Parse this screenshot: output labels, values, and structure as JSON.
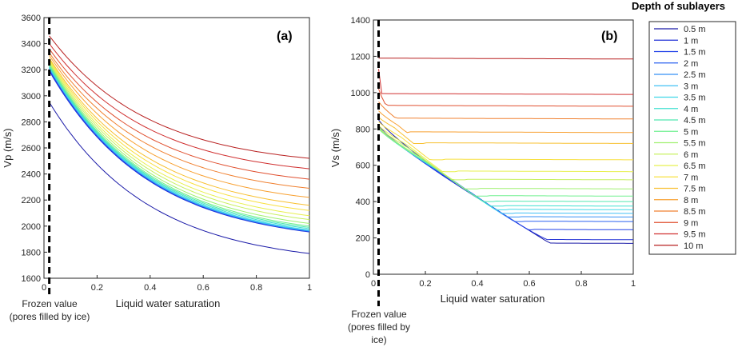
{
  "legend": {
    "title": "Depth of sublayers",
    "entries": [
      "0.5 m",
      "1 m",
      "1.5 m",
      "2 m",
      "2.5 m",
      "3 m",
      "3.5 m",
      "4 m",
      "4.5 m",
      "5 m",
      "5.5 m",
      "6 m",
      "6.5 m",
      "7 m",
      "7.5 m",
      "8 m",
      "8.5 m",
      "9 m",
      "9.5 m",
      "10 m"
    ],
    "colors": [
      "#1a1aa8",
      "#1f2fd6",
      "#2040e8",
      "#2a60f0",
      "#3590f5",
      "#40c0f5",
      "#40d8e8",
      "#40e0d0",
      "#50e8b0",
      "#70f090",
      "#a0f070",
      "#c8f060",
      "#e8f050",
      "#f8e040",
      "#f8c030",
      "#f8a030",
      "#f08030",
      "#e05030",
      "#d03030",
      "#b82020"
    ]
  },
  "chart_data": [
    {
      "type": "line",
      "panel_label": "(a)",
      "xlabel": "Liquid water saturation",
      "ylabel": "Vp (m/s)",
      "xlim": [
        0,
        1
      ],
      "ylim": [
        1600,
        3600
      ],
      "xticks": [
        "0",
        "0.2",
        "0.4",
        "0.6",
        "0.8",
        "1"
      ],
      "yticks": [
        "1600",
        "1800",
        "2000",
        "2200",
        "2400",
        "2600",
        "2800",
        "3000",
        "3200",
        "3400",
        "3600"
      ],
      "frozen_marker_x": 0.02,
      "annotation": [
        "Frozen value",
        "(pores filled by ice)"
      ],
      "x": [
        0.02,
        0.05,
        0.1,
        0.15,
        0.2,
        0.3,
        0.4,
        0.5,
        0.6,
        0.7,
        0.8,
        0.9,
        1.0
      ],
      "series_ends": {
        "description": "Vp at x=0.02 and x=1 for each sublayer, shallow to deep",
        "start": [
          2950,
          3190,
          3200,
          3210,
          3210,
          3215,
          3220,
          3225,
          3230,
          3240,
          3250,
          3260,
          3270,
          3280,
          3290,
          3310,
          3330,
          3360,
          3400,
          3460
        ],
        "end": [
          1790,
          1955,
          1958,
          1960,
          1962,
          1965,
          1970,
          1980,
          1990,
          2000,
          2020,
          2050,
          2080,
          2120,
          2160,
          2220,
          2290,
          2360,
          2440,
          2520
        ]
      }
    },
    {
      "type": "line",
      "panel_label": "(b)",
      "xlabel": "Liquid water saturation",
      "ylabel": "Vs (m/s)",
      "xlim": [
        0,
        1
      ],
      "ylim": [
        0,
        1400
      ],
      "xticks": [
        "0",
        "0.2",
        "0.4",
        "0.6",
        "0.8",
        "1"
      ],
      "yticks": [
        "0",
        "200",
        "400",
        "600",
        "800",
        "1000",
        "1200",
        "1400"
      ],
      "frozen_marker_x": 0.02,
      "annotation": [
        "Frozen value",
        "(pores filled by",
        "ice)"
      ],
      "series_params": {
        "description": "Vs at x=0.02 (start) and plateau value reached after cutoff saturation, shallow to deep",
        "start": [
          850,
          820,
          815,
          810,
          808,
          806,
          805,
          804,
          803,
          802,
          805,
          810,
          820,
          840,
          865,
          900,
          950,
          1020,
          1130,
          1210
        ],
        "plateau": [
          170,
          190,
          245,
          290,
          315,
          335,
          355,
          375,
          400,
          430,
          470,
          520,
          565,
          630,
          720,
          780,
          855,
          925,
          990,
          1185
        ],
        "cutoff": [
          0.68,
          0.67,
          0.62,
          0.58,
          0.56,
          0.54,
          0.52,
          0.5,
          0.47,
          0.44,
          0.4,
          0.36,
          0.32,
          0.27,
          0.2,
          0.14,
          0.09,
          0.05,
          0.03,
          0.02
        ]
      }
    }
  ]
}
